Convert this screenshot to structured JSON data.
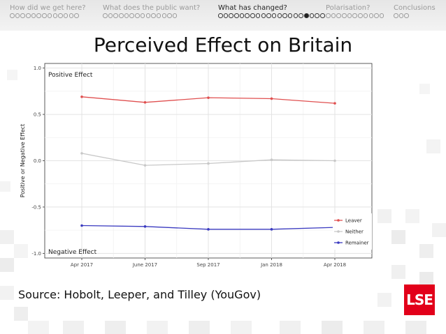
{
  "nav": {
    "sections": [
      {
        "label": "How did we get here?",
        "dots": 13,
        "filled": -1,
        "active": false
      },
      {
        "label": "What does the public want?",
        "dots": 14,
        "filled": -1,
        "active": false
      },
      {
        "label": "What has changed?",
        "dots": 20,
        "filled": 16,
        "active": true
      },
      {
        "label": "Polarisation?",
        "dots": 11,
        "filled": -1,
        "active": false
      },
      {
        "label": "Conclusions",
        "dots": 3,
        "filled": -1,
        "active": false
      }
    ]
  },
  "slide": {
    "title": "Perceived Effect on Britain",
    "source": "Source: Hobolt, Leeper, and Tilley (YouGov)"
  },
  "logo": {
    "text": "LSE",
    "color": "#e2001a"
  },
  "chart_data": {
    "type": "line",
    "categories": [
      "Apr 2017",
      "June 2017",
      "Sep 2017",
      "Jan 2018",
      "Apr 2018"
    ],
    "series": [
      {
        "name": "Leaver",
        "values": [
          0.69,
          0.63,
          0.68,
          0.67,
          0.62
        ],
        "color": "#e05050"
      },
      {
        "name": "Neither",
        "values": [
          0.08,
          -0.05,
          -0.03,
          0.01,
          0.0
        ],
        "color": "#c8c8c8"
      },
      {
        "name": "Remainer",
        "values": [
          -0.7,
          -0.71,
          -0.74,
          -0.74,
          -0.72
        ],
        "color": "#3a3ac0"
      }
    ],
    "ylabel": "Positive or Negative Effect",
    "xlabel": "",
    "ylim": [
      -1.0,
      1.0
    ],
    "yticks": [
      "1.0",
      "0.5",
      "0.0",
      "-0.5",
      "-1.0"
    ],
    "ytick_values": [
      1.0,
      0.5,
      0.0,
      -0.5,
      -1.0
    ],
    "annotations": {
      "top": "Positive Effect",
      "bottom": "Negative Effect"
    },
    "legend_position": "bottom-right",
    "grid": true
  }
}
